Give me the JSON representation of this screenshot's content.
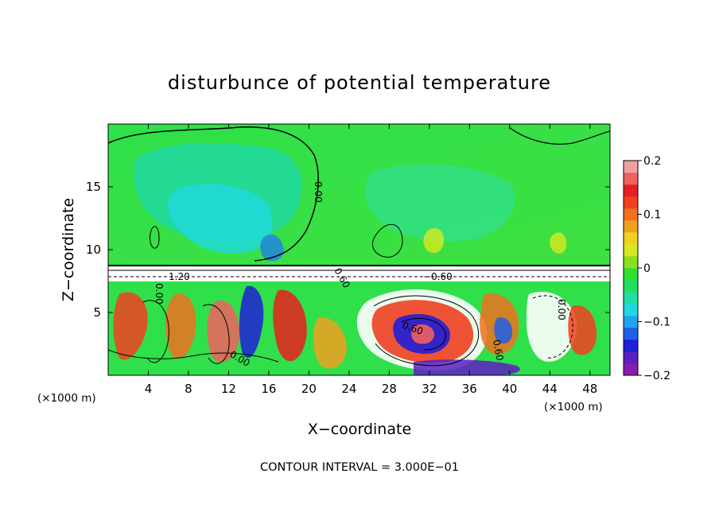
{
  "chart_data": {
    "type": "heatmap",
    "title": "disturbunce of potential temperature",
    "xlabel": "X−coordinate",
    "ylabel": "Z−coordinate",
    "x_unit_left": "(×1000 m)",
    "x_unit_right": "(×1000 m)",
    "xlim": [
      0,
      50
    ],
    "ylim": [
      0,
      20
    ],
    "x_ticks": [
      4,
      8,
      12,
      16,
      20,
      24,
      28,
      32,
      36,
      40,
      44,
      48
    ],
    "y_ticks": [
      5,
      10,
      15
    ],
    "colorbar": {
      "range": [
        -0.2,
        0.2
      ],
      "tick_values": [
        0.2,
        0.1,
        0,
        -0.1,
        -0.2
      ],
      "tick_labels": [
        "0.2",
        "0.1",
        "0",
        "−0.1",
        "−0.2"
      ],
      "colors": [
        "#8a1bb0",
        "#5b1fc2",
        "#1f1fd6",
        "#1f5fe8",
        "#1fa3f0",
        "#1fd8e0",
        "#1fe0a0",
        "#1fe060",
        "#2fe030",
        "#8ae020",
        "#d8e820",
        "#f0d020",
        "#f0a020",
        "#f07020",
        "#f04020",
        "#e81f1f",
        "#f06060",
        "#f0a0a0"
      ]
    },
    "contour_labels": [
      "0.00",
      "0.00",
      "0.00",
      "−0.60",
      "0.60",
      "0.60",
      "0.00",
      "0.60",
      "1.20"
    ],
    "grid": false
  },
  "footer": {
    "contour_interval": "CONTOUR INTERVAL = 3.000E−01"
  }
}
